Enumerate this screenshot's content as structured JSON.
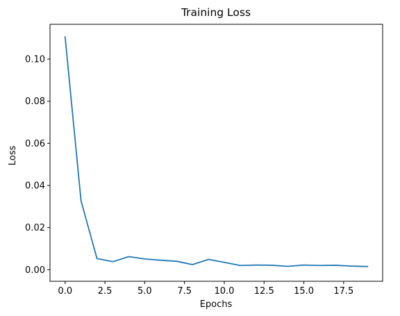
{
  "chart_data": {
    "type": "line",
    "title": "Training Loss",
    "xlabel": "Epochs",
    "ylabel": "Loss",
    "xlim": [
      -0.95,
      19.95
    ],
    "ylim": [
      -0.0055,
      0.1165
    ],
    "xticks": [
      0,
      2.5,
      5,
      7.5,
      10,
      12.5,
      15,
      17.5
    ],
    "xtick_labels": [
      "0.0",
      "2.5",
      "5.0",
      "7.5",
      "10.0",
      "12.5",
      "15.0",
      "17.5"
    ],
    "yticks": [
      0,
      0.02,
      0.04,
      0.06,
      0.08,
      0.1
    ],
    "ytick_labels": [
      "0.00",
      "0.02",
      "0.04",
      "0.06",
      "0.08",
      "0.10"
    ],
    "grid": false,
    "series": [
      {
        "color": "#1f77b4",
        "x": [
          0,
          1,
          2,
          3,
          4,
          5,
          6,
          7,
          8,
          9,
          10,
          11,
          12,
          13,
          14,
          15,
          16,
          17,
          18,
          19
        ],
        "y": [
          0.1105,
          0.0327,
          0.0053,
          0.0038,
          0.0062,
          0.0051,
          0.0045,
          0.004,
          0.0024,
          0.0049,
          0.0035,
          0.002,
          0.0022,
          0.0021,
          0.0016,
          0.0022,
          0.002,
          0.0021,
          0.0017,
          0.0015
        ]
      }
    ]
  }
}
